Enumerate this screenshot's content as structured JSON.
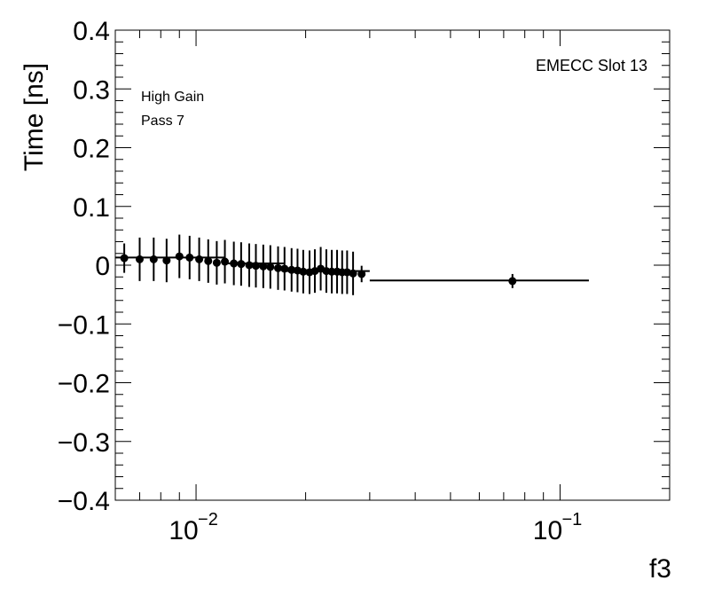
{
  "chart_data": {
    "type": "scatter",
    "title": "",
    "xlabel": "f3",
    "ylabel": "Time [ns]",
    "xscale": "log",
    "xlim": [
      0.006,
      0.2
    ],
    "ylim": [
      -0.4,
      0.4
    ],
    "yticks": [
      -0.4,
      -0.3,
      -0.2,
      -0.1,
      0,
      0.1,
      0.2,
      0.3,
      0.4
    ],
    "ytick_labels": [
      "−0.4",
      "−0.3",
      "−0.2",
      "−0.1",
      "0",
      "0.1",
      "0.2",
      "0.3",
      "0.4"
    ],
    "xticks_major": [
      0.01,
      0.1
    ],
    "xtick_labels": [
      {
        "base": "10",
        "exp": "−2"
      },
      {
        "base": "10",
        "exp": "−1"
      }
    ],
    "grid": false,
    "annotations": {
      "top_right": "EMECC Slot 13",
      "line1": "High Gain",
      "line2": "Pass 7"
    },
    "series": [
      {
        "points": [
          {
            "x": 0.00635,
            "y": 0.012,
            "ey": 0.025
          },
          {
            "x": 0.007,
            "y": 0.01,
            "ey": 0.037
          },
          {
            "x": 0.00765,
            "y": 0.01,
            "ey": 0.037
          },
          {
            "x": 0.0083,
            "y": 0.008,
            "ey": 0.037
          },
          {
            "x": 0.009,
            "y": 0.015,
            "ey": 0.037
          },
          {
            "x": 0.0096,
            "y": 0.013,
            "ey": 0.037
          },
          {
            "x": 0.0102,
            "y": 0.01,
            "ey": 0.037
          },
          {
            "x": 0.0108,
            "y": 0.007,
            "ey": 0.037
          },
          {
            "x": 0.0114,
            "y": 0.004,
            "ey": 0.037
          },
          {
            "x": 0.012,
            "y": 0.006,
            "ey": 0.037
          },
          {
            "x": 0.0127,
            "y": 0.003,
            "ey": 0.037
          },
          {
            "x": 0.0133,
            "y": 0.002,
            "ey": 0.037
          },
          {
            "x": 0.014,
            "y": 0.0,
            "ey": 0.037
          },
          {
            "x": 0.0146,
            "y": -0.001,
            "ey": 0.037
          },
          {
            "x": 0.0153,
            "y": -0.002,
            "ey": 0.037
          },
          {
            "x": 0.016,
            "y": -0.003,
            "ey": 0.037
          },
          {
            "x": 0.0168,
            "y": -0.005,
            "ey": 0.037
          },
          {
            "x": 0.0175,
            "y": -0.006,
            "ey": 0.037
          },
          {
            "x": 0.0183,
            "y": -0.008,
            "ey": 0.037
          },
          {
            "x": 0.019,
            "y": -0.009,
            "ey": 0.037
          },
          {
            "x": 0.0197,
            "y": -0.011,
            "ey": 0.037
          },
          {
            "x": 0.0205,
            "y": -0.012,
            "ey": 0.037
          },
          {
            "x": 0.0212,
            "y": -0.01,
            "ey": 0.037
          },
          {
            "x": 0.022,
            "y": -0.006,
            "ey": 0.037
          },
          {
            "x": 0.0228,
            "y": -0.01,
            "ey": 0.037
          },
          {
            "x": 0.0236,
            "y": -0.011,
            "ey": 0.037
          },
          {
            "x": 0.0244,
            "y": -0.011,
            "ey": 0.037
          },
          {
            "x": 0.0252,
            "y": -0.012,
            "ey": 0.037
          },
          {
            "x": 0.026,
            "y": -0.012,
            "ey": 0.037
          },
          {
            "x": 0.027,
            "y": -0.014,
            "ey": 0.037
          },
          {
            "x": 0.0285,
            "y": -0.015,
            "ey": 0.014
          },
          {
            "x": 0.074,
            "y": -0.027,
            "ey": 0.012
          }
        ]
      }
    ],
    "fit_segments": [
      {
        "x0": 0.006,
        "x1": 0.012,
        "y": 0.013
      },
      {
        "x0": 0.012,
        "x1": 0.0175,
        "y": 0.003
      },
      {
        "x0": 0.0175,
        "x1": 0.03,
        "y": -0.01
      },
      {
        "x0": 0.03,
        "x1": 0.12,
        "y": -0.026
      }
    ]
  }
}
